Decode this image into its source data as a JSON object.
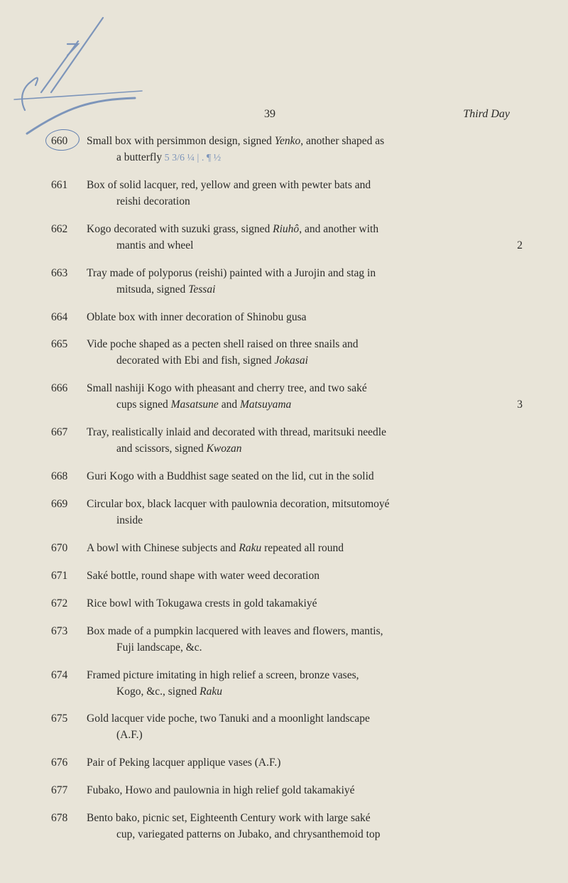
{
  "page": {
    "number": "39",
    "running_title": "Third Day",
    "background_color": "#e8e4d8",
    "text_color": "#2a2a28",
    "pencil_color": "#5a7bb0",
    "font_family": "Georgia, Times New Roman, serif",
    "base_fontsize": 15.5
  },
  "entries": [
    {
      "num": "660",
      "circled": true,
      "text": "Small box with persimmon design, signed ",
      "italic1": "Yenko",
      "text2": ", another shaped as",
      "cont": "a butterfly",
      "annotation": "5 3/6 ¼ | . ¶   ½"
    },
    {
      "num": "661",
      "text": "Box of solid lacquer, red, yellow and green with pewter bats and",
      "cont": "reishi decoration"
    },
    {
      "num": "662",
      "text": "Kogo decorated with suzuki grass, signed ",
      "italic1": "Riuhô",
      "text2": ", and another with",
      "cont": "mantis and wheel",
      "trailing": "2"
    },
    {
      "num": "663",
      "text": "Tray made of polyporus (reishi) painted with a Jurojin and stag in",
      "cont": "mitsuda, signed ",
      "cont_italic": "Tessai"
    },
    {
      "num": "664",
      "text": "Oblate box with inner decoration of Shinobu gusa"
    },
    {
      "num": "665",
      "text": "Vide poche shaped as a pecten shell raised on three snails and",
      "cont": "decorated with Ebi and fish, signed ",
      "cont_italic": "Jokasai"
    },
    {
      "num": "666",
      "text": "Small nashiji Kogo with pheasant and cherry tree, and two saké",
      "cont": "cups signed ",
      "cont_italic": "Masatsune",
      "cont2": " and ",
      "cont_italic2": "Matsuyama",
      "trailing": "3"
    },
    {
      "num": "667",
      "text": "Tray, realistically inlaid and decorated with thread, maritsuki needle",
      "cont": "and scissors, signed ",
      "cont_italic": "Kwozan"
    },
    {
      "num": "668",
      "text": "Guri Kogo with a Buddhist sage seated on the lid, cut in the solid"
    },
    {
      "num": "669",
      "text": "Circular box, black lacquer with paulownia decoration, mitsutomoyé",
      "cont": "inside"
    },
    {
      "num": "670",
      "text": "A bowl with Chinese subjects and ",
      "italic1": "Raku",
      "text2": " repeated all round"
    },
    {
      "num": "671",
      "text": "Saké bottle, round shape with water weed decoration"
    },
    {
      "num": "672",
      "text": "Rice bowl with Tokugawa crests in gold takamakiyé"
    },
    {
      "num": "673",
      "text": "Box made of a pumpkin lacquered with leaves and flowers, mantis,",
      "cont": "Fuji landscape, &c."
    },
    {
      "num": "674",
      "text": "Framed picture imitating in high relief a screen, bronze vases,",
      "cont": "Kogo, &c., signed ",
      "cont_italic": "Raku"
    },
    {
      "num": "675",
      "text": "Gold lacquer vide poche, two Tanuki and a moonlight landscape",
      "cont": "(A.F.)"
    },
    {
      "num": "676",
      "text": "Pair of Peking lacquer applique vases (A.F.)"
    },
    {
      "num": "677",
      "text": "Fubako, Howo and paulownia in high relief gold takamakiyé"
    },
    {
      "num": "678",
      "text": "Bento bako, picnic set, Eighteenth Century work with large saké",
      "cont": "cup, variegated patterns on Jubako, and chrysanthemoid top"
    }
  ]
}
